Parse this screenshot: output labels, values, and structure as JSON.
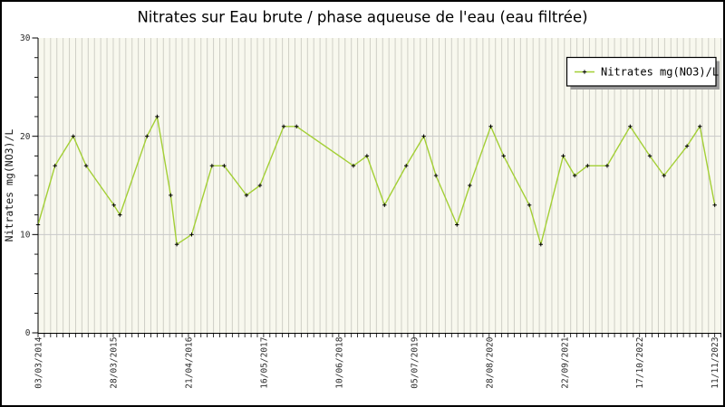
{
  "window": {
    "title": "Nitrates sur Eau brute / phase aqueuse de l'eau (eau filtrée)"
  },
  "colors": {
    "series_line": "#a3cf35",
    "marker": "#000000",
    "plot_background": "#f8f8ee",
    "stripe_gridline": "#cfcfc6",
    "horizontal_gridline": "#c9c9c9",
    "axis": "#000000",
    "figure_border": "#000000",
    "legend_shadow": "#9c9c9c",
    "legend_background": "#ffffff"
  },
  "chart_data": {
    "type": "line",
    "title": "Nitrates sur Eau brute / phase aqueuse de l'eau (eau filtrée)",
    "xlabel": "",
    "ylabel": "Nitrates mg(NO3)/L",
    "ylim": [
      0,
      30
    ],
    "yticks_major": [
      0,
      10,
      20,
      30
    ],
    "ytick_minor_step": 2,
    "grid": {
      "horizontal_gridlines_at": [
        10,
        20
      ],
      "vertical_stripes": true,
      "vertical_stripes_per_label_interval": 12
    },
    "legend_position": "upper-right",
    "legend_entries": [
      "Nitrates mg(NO3)/L"
    ],
    "xtick_labels": [
      "03/03/2014",
      "28/03/2015",
      "21/04/2016",
      "16/05/2017",
      "10/06/2018",
      "05/07/2019",
      "28/08/2020",
      "22/09/2021",
      "17/10/2022",
      "11/11/2023"
    ],
    "xtick_labels_rotation_deg": -90,
    "x_axis_note": "time axis from 03/03/2014 to 11/11/2023; x_frac is fraction of distance between first and last tick",
    "series": [
      {
        "name": "Nitrates mg(NO3)/L",
        "color": "#a3cf35",
        "marker": "+",
        "marker_color": "#000000",
        "points": [
          [
            0.0,
            11
          ],
          [
            0.025,
            17
          ],
          [
            0.052,
            20
          ],
          [
            0.071,
            17
          ],
          [
            0.112,
            13
          ],
          [
            0.121,
            12
          ],
          [
            0.161,
            20
          ],
          [
            0.176,
            22
          ],
          [
            0.196,
            14
          ],
          [
            0.205,
            9
          ],
          [
            0.227,
            10
          ],
          [
            0.257,
            17
          ],
          [
            0.275,
            17
          ],
          [
            0.308,
            14
          ],
          [
            0.328,
            15
          ],
          [
            0.363,
            21
          ],
          [
            0.382,
            21
          ],
          [
            0.466,
            17
          ],
          [
            0.486,
            18
          ],
          [
            0.512,
            13
          ],
          [
            0.544,
            17
          ],
          [
            0.57,
            20
          ],
          [
            0.588,
            16
          ],
          [
            0.619,
            11
          ],
          [
            0.638,
            15
          ],
          [
            0.669,
            21
          ],
          [
            0.688,
            18
          ],
          [
            0.726,
            13
          ],
          [
            0.743,
            9
          ],
          [
            0.776,
            18
          ],
          [
            0.793,
            16
          ],
          [
            0.812,
            17
          ],
          [
            0.841,
            17
          ],
          [
            0.875,
            21
          ],
          [
            0.904,
            18
          ],
          [
            0.925,
            16
          ],
          [
            0.959,
            19
          ],
          [
            0.978,
            21
          ],
          [
            1.0,
            13
          ]
        ]
      }
    ]
  }
}
